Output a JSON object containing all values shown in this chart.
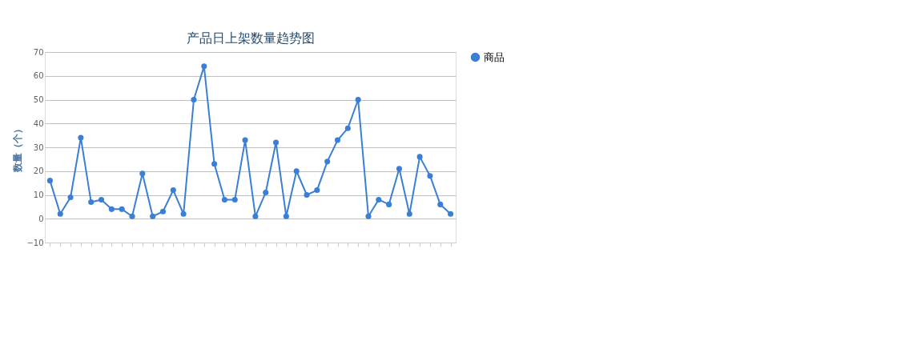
{
  "chart_data": {
    "type": "line",
    "title": "产品日上架数量趋势图",
    "ylabel": "数量（个）",
    "categories": [
      null,
      null,
      null,
      null,
      null,
      null,
      null,
      null,
      null,
      null,
      null,
      null,
      null,
      null,
      null,
      null,
      null,
      null,
      null,
      null,
      null,
      null,
      null,
      null,
      null,
      null,
      null,
      null,
      null,
      null,
      null,
      null,
      null,
      null,
      null,
      null,
      null,
      null,
      null,
      null
    ],
    "series": [
      {
        "name": "商品",
        "color": "#3a7fd5",
        "values": [
          16,
          2,
          9,
          34,
          7,
          8,
          4,
          4,
          1,
          19,
          1,
          3,
          12,
          2,
          50,
          64,
          23,
          8,
          8,
          33,
          1,
          11,
          32,
          1,
          20,
          10,
          12,
          24,
          33,
          38,
          50,
          1,
          8,
          6,
          21,
          2,
          26,
          18,
          6,
          2
        ]
      }
    ],
    "ylim": [
      -10,
      70
    ],
    "yticks": [
      -10,
      0,
      10,
      20,
      30,
      40,
      50,
      60,
      70
    ],
    "grid": "y",
    "legend": "right",
    "marker": "circle",
    "line_style": "solid"
  }
}
